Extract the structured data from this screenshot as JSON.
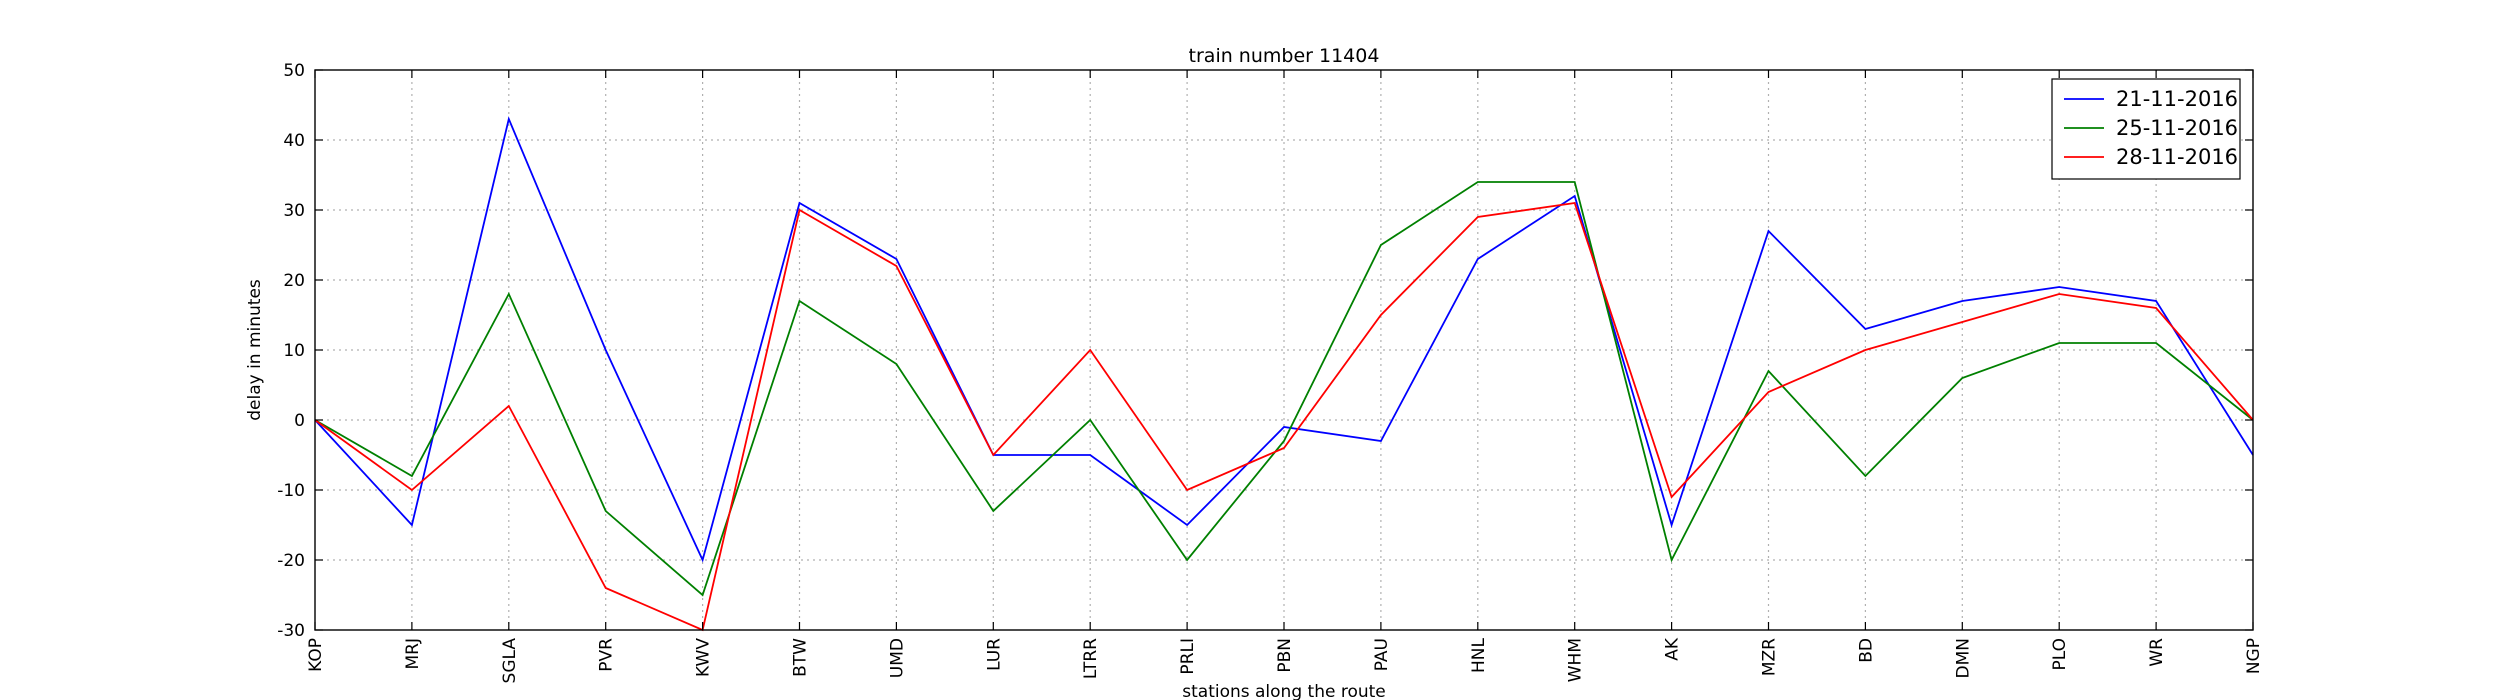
{
  "chart_data": {
    "type": "line",
    "title": "train number 11404",
    "xlabel": "stations along the route",
    "ylabel": "delay in minutes",
    "ylim": [
      -30,
      50
    ],
    "yticks": [
      -30,
      -20,
      -10,
      0,
      10,
      20,
      30,
      40,
      50
    ],
    "grid": true,
    "legend_position": "top-right",
    "categories": [
      "KOP",
      "MRJ",
      "SGLA",
      "PVR",
      "KWV",
      "BTW",
      "UMD",
      "LUR",
      "LTRR",
      "PRLI",
      "PBN",
      "PAU",
      "HNL",
      "WHM",
      "AK",
      "MZR",
      "BD",
      "DMN",
      "PLO",
      "WR",
      "NGP"
    ],
    "series": [
      {
        "name": "21-11-2016",
        "color": "#0000ff",
        "values": [
          0,
          -15,
          43,
          10,
          -20,
          31,
          23,
          -5,
          -5,
          -15,
          -1,
          -3,
          23,
          32,
          -15,
          27,
          13,
          17,
          19,
          17,
          -5
        ]
      },
      {
        "name": "25-11-2016",
        "color": "#008000",
        "values": [
          0,
          -8,
          18,
          -13,
          -25,
          17,
          8,
          -13,
          0,
          -20,
          -3,
          25,
          34,
          34,
          -20,
          7,
          -8,
          6,
          11,
          11,
          0
        ]
      },
      {
        "name": "28-11-2016",
        "color": "#ff0000",
        "values": [
          0,
          -10,
          2,
          -24,
          -30,
          30,
          22,
          -5,
          10,
          -10,
          -4,
          15,
          29,
          31,
          -11,
          4,
          10,
          14,
          18,
          16,
          0
        ]
      }
    ]
  }
}
